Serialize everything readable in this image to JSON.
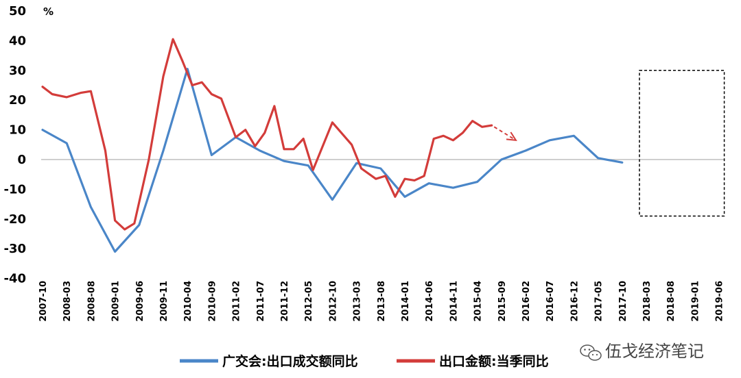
{
  "chart_data": {
    "type": "line",
    "unit_label": "%",
    "ylim": [
      -40,
      50
    ],
    "yticks": [
      -40,
      -30,
      -20,
      -10,
      0,
      10,
      20,
      30,
      40,
      50
    ],
    "categories": [
      "2007-10",
      "2008-03",
      "2008-08",
      "2009-01",
      "2009-06",
      "2009-11",
      "2010-04",
      "2010-09",
      "2011-02",
      "2011-07",
      "2011-12",
      "2012-05",
      "2012-10",
      "2013-03",
      "2013-08",
      "2014-01",
      "2014-06",
      "2014-11",
      "2015-04",
      "2015-09",
      "2016-02",
      "2016-07",
      "2016-12",
      "2017-05",
      "2017-10",
      "2018-03",
      "2018-08",
      "2019-01",
      "2019-06"
    ],
    "series": [
      {
        "name": "广交会:出口成交额同比",
        "color": "#4a86c8",
        "points": [
          [
            0,
            10
          ],
          [
            1,
            5.5
          ],
          [
            2,
            -16
          ],
          [
            3,
            -31
          ],
          [
            4,
            -22
          ],
          [
            5,
            3
          ],
          [
            6,
            30.5
          ],
          [
            7,
            1.5
          ],
          [
            8,
            7.5
          ],
          [
            9,
            3
          ],
          [
            10,
            -0.5
          ],
          [
            11,
            -2
          ],
          [
            12,
            -13.5
          ],
          [
            13,
            -1.2
          ],
          [
            14,
            -3
          ],
          [
            15,
            -12.5
          ],
          [
            16,
            -8
          ],
          [
            17,
            -9.5
          ],
          [
            18,
            -7.5
          ],
          [
            19,
            0
          ],
          [
            20,
            3
          ],
          [
            21,
            6.5
          ],
          [
            22,
            8
          ],
          [
            23,
            0.5
          ],
          [
            24,
            -1
          ]
        ]
      },
      {
        "name": "出口金额:当季同比",
        "color": "#d33c3a",
        "points": [
          [
            0,
            24.5
          ],
          [
            0.4,
            22
          ],
          [
            1,
            21
          ],
          [
            1.6,
            22.5
          ],
          [
            2,
            23
          ],
          [
            2.6,
            3
          ],
          [
            3,
            -20.5
          ],
          [
            3.4,
            -23.5
          ],
          [
            3.8,
            -21.5
          ],
          [
            4.4,
            0
          ],
          [
            5,
            28
          ],
          [
            5.4,
            40.5
          ],
          [
            5.8,
            33
          ],
          [
            6.2,
            25
          ],
          [
            6.6,
            26
          ],
          [
            7,
            22
          ],
          [
            7.4,
            20.5
          ],
          [
            8,
            7.5
          ],
          [
            8.4,
            10
          ],
          [
            8.8,
            4.5
          ],
          [
            9.2,
            9
          ],
          [
            9.6,
            18
          ],
          [
            10,
            3.5
          ],
          [
            10.4,
            3.5
          ],
          [
            10.8,
            7
          ],
          [
            11.2,
            -3.5
          ],
          [
            12,
            12.5
          ],
          [
            12.8,
            5
          ],
          [
            13.2,
            -3
          ],
          [
            13.8,
            -6.5
          ],
          [
            14.2,
            -5.5
          ],
          [
            14.6,
            -12.5
          ],
          [
            15,
            -6.5
          ],
          [
            15.4,
            -7
          ],
          [
            15.8,
            -5.5
          ],
          [
            16.2,
            7
          ],
          [
            16.6,
            8
          ],
          [
            17,
            6.5
          ],
          [
            17.4,
            9
          ],
          [
            17.8,
            13
          ],
          [
            18.2,
            11
          ],
          [
            18.6,
            11.5
          ]
        ]
      }
    ],
    "series_x": "category positions matching categories[] indices (0 = 2007-10)",
    "highlight_box": {
      "from_category": "2018-03",
      "to_category": "2019-06",
      "ymin": -19,
      "ymax": 30
    },
    "arrow": {
      "from": [
        18.7,
        11
      ],
      "to": [
        19.6,
        6.5
      ],
      "color": "#d33c3a",
      "dashed": true
    },
    "legend": {
      "placement": "bottom-center"
    },
    "grid": false
  },
  "watermark": {
    "text": "伍戈经济笔记",
    "icon": "wechat-icon"
  }
}
